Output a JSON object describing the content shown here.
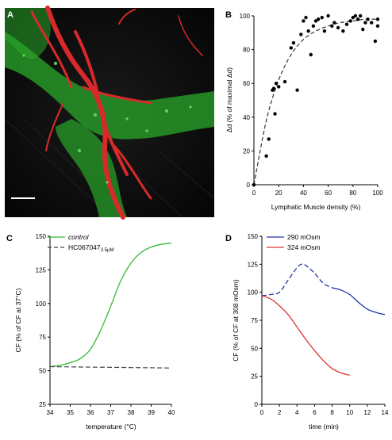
{
  "panels": {
    "A": {
      "label": "A"
    },
    "B": {
      "label": "B"
    },
    "C": {
      "label": "C"
    },
    "D": {
      "label": "D"
    }
  },
  "chart_data": [
    {
      "id": "B",
      "type": "scatter",
      "xlabel": "Lymphatic Muscle density (%)",
      "ylabel": "Δd (% of maximal Δd)",
      "xlim": [
        0,
        100
      ],
      "ylim": [
        0,
        100
      ],
      "xticks": [
        0,
        20,
        40,
        60,
        80,
        100
      ],
      "yticks": [
        0,
        20,
        40,
        60,
        80,
        100
      ],
      "points": [
        [
          0,
          0
        ],
        [
          10,
          17
        ],
        [
          12,
          27
        ],
        [
          15,
          56
        ],
        [
          16,
          57
        ],
        [
          17,
          42
        ],
        [
          18,
          60
        ],
        [
          20,
          58
        ],
        [
          25,
          61
        ],
        [
          30,
          81
        ],
        [
          32,
          84
        ],
        [
          35,
          56
        ],
        [
          38,
          89
        ],
        [
          40,
          97
        ],
        [
          42,
          99
        ],
        [
          44,
          91
        ],
        [
          46,
          77
        ],
        [
          48,
          94
        ],
        [
          50,
          97
        ],
        [
          52,
          98
        ],
        [
          55,
          99
        ],
        [
          57,
          91
        ],
        [
          60,
          100
        ],
        [
          63,
          94
        ],
        [
          65,
          96
        ],
        [
          68,
          93
        ],
        [
          72,
          91
        ],
        [
          75,
          95
        ],
        [
          78,
          97
        ],
        [
          80,
          99
        ],
        [
          82,
          100
        ],
        [
          84,
          98
        ],
        [
          86,
          100
        ],
        [
          88,
          92
        ],
        [
          90,
          96
        ],
        [
          92,
          98
        ],
        [
          95,
          96
        ],
        [
          98,
          85
        ],
        [
          100,
          94
        ],
        [
          100,
          98
        ]
      ],
      "fit": {
        "style": "dashed",
        "x": [
          0,
          10,
          20,
          30,
          40,
          50,
          60,
          70,
          80,
          90,
          100
        ],
        "y": [
          0,
          38,
          62,
          77,
          86,
          91,
          94,
          96,
          97,
          98,
          98
        ]
      }
    },
    {
      "id": "C",
      "type": "line",
      "xlabel": "temperature (°C)",
      "ylabel": "CF (% of CF at 37°C)",
      "xlim": [
        34,
        40
      ],
      "ylim": [
        25,
        150
      ],
      "xticks": [
        34,
        35,
        36,
        37,
        38,
        39,
        40
      ],
      "yticks": [
        25,
        50,
        75,
        100,
        125,
        150
      ],
      "series": [
        {
          "name": "control",
          "color": "#33bb33",
          "style": "solid",
          "x": [
            34,
            34.5,
            35,
            35.5,
            36,
            36.5,
            37,
            37.5,
            38,
            38.5,
            39,
            39.5,
            40
          ],
          "y": [
            53,
            54,
            56,
            59,
            66,
            80,
            98,
            117,
            130,
            138,
            142,
            144,
            145
          ]
        },
        {
          "name": "HC067047",
          "name_sub": "2.5µM",
          "color": "#444444",
          "style": "dashed",
          "x": [
            34,
            40
          ],
          "y": [
            53,
            52
          ]
        }
      ]
    },
    {
      "id": "D",
      "type": "line",
      "xlabel": "time (min)",
      "ylabel": "CF (% of CF at 308 mOsm)",
      "xlim": [
        0,
        14
      ],
      "ylim": [
        0,
        150
      ],
      "xticks": [
        0,
        2,
        4,
        6,
        8,
        10,
        12,
        14
      ],
      "yticks": [
        0,
        25,
        50,
        75,
        100,
        125,
        150
      ],
      "series": [
        {
          "name": "290 mOsm",
          "color": "#2233aa",
          "style": "dashed-then-solid",
          "x": [
            0,
            1,
            2,
            3,
            4,
            4.5,
            5,
            6,
            7,
            8,
            9,
            10,
            11,
            12,
            13,
            14
          ],
          "y": [
            97,
            98,
            100,
            111,
            122,
            125,
            124,
            117,
            108,
            104,
            102,
            98,
            91,
            85,
            82,
            80
          ]
        },
        {
          "name": "324 mOsm",
          "color": "#dd3333",
          "style": "solid",
          "x": [
            0,
            1,
            2,
            3,
            4,
            5,
            6,
            7,
            8,
            9,
            10
          ],
          "y": [
            97,
            94,
            88,
            80,
            69,
            58,
            48,
            39,
            32,
            28,
            26
          ]
        }
      ]
    }
  ]
}
